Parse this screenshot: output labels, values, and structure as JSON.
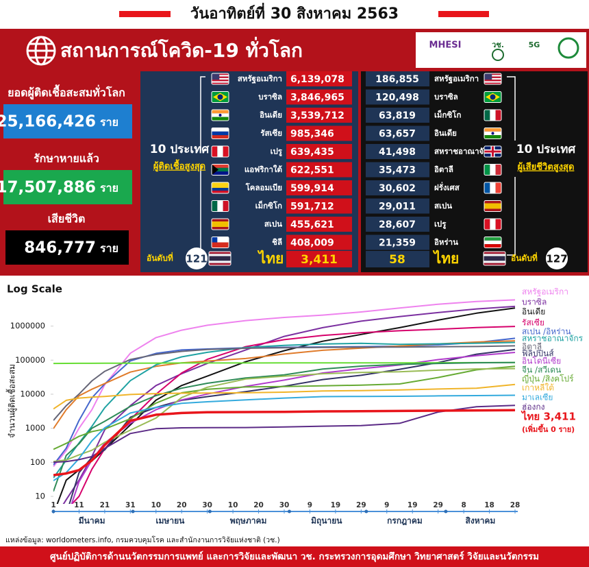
{
  "header": {
    "date": "วันอาทิตย์ที่ 30 สิงหาคม 2563"
  },
  "panel": {
    "title": "สถานการณ์โควิด-19 ทั่วโลก",
    "logos": [
      "MHESI",
      "วช.",
      "5G"
    ]
  },
  "stats": [
    {
      "label": "ยอดผู้ติดเชื้อสะสมทั่วโลก",
      "value": "25,166,426",
      "unit": "ราย"
    },
    {
      "label": "รักษาหายแล้ว",
      "value": "17,507,886",
      "unit": "ราย"
    },
    {
      "label": "เสียชีวิต",
      "value": "846,777",
      "unit": "ราย"
    }
  ],
  "cases": {
    "heading": "10 ประเทศ",
    "subheading": "ผู้ติดเชื้อสูงสุด",
    "rows": [
      {
        "country": "สหรัฐอเมริกา",
        "value": "6,139,078"
      },
      {
        "country": "บราซิล",
        "value": "3,846,965"
      },
      {
        "country": "อินเดีย",
        "value": "3,539,712"
      },
      {
        "country": "รัสเซีย",
        "value": "985,346"
      },
      {
        "country": "เปรู",
        "value": "639,435"
      },
      {
        "country": "แอฟริกาใต้",
        "value": "622,551"
      },
      {
        "country": "โคลอมเบีย",
        "value": "599,914"
      },
      {
        "country": "เม็กซิโก",
        "value": "591,712"
      },
      {
        "country": "สเปน",
        "value": "455,621"
      },
      {
        "country": "ชิลี",
        "value": "408,009"
      }
    ],
    "thailand": {
      "rank_label": "อันดับที่",
      "rank": "121",
      "country": "ไทย",
      "value": "3,411"
    }
  },
  "deaths": {
    "heading": "10 ประเทศ",
    "subheading": "ผู้เสียชีวิตสูงสุด",
    "rows": [
      {
        "country": "สหรัฐอเมริกา",
        "value": "186,855"
      },
      {
        "country": "บราซิล",
        "value": "120,498"
      },
      {
        "country": "เม็กซิโก",
        "value": "63,819"
      },
      {
        "country": "อินเดีย",
        "value": "63,657"
      },
      {
        "country": "สหราชอาณาจักร",
        "value": "41,498"
      },
      {
        "country": "อิตาลี",
        "value": "35,473"
      },
      {
        "country": "ฝรั่งเศส",
        "value": "30,602"
      },
      {
        "country": "สเปน",
        "value": "29,011"
      },
      {
        "country": "เปรู",
        "value": "28,607"
      },
      {
        "country": "อิหร่าน",
        "value": "21,359"
      }
    ],
    "thailand": {
      "rank_label": "อันดับที่",
      "rank": "127",
      "country": "ไทย",
      "value": "58"
    }
  },
  "chart_data": {
    "type": "line",
    "title": "Log Scale",
    "y_label": "จำนวนผู้ติดเชื้อสะสม",
    "log_scale": true,
    "grid": false,
    "x": [
      0,
      5,
      10,
      15,
      20,
      30,
      40,
      50,
      60,
      75,
      90,
      105,
      120,
      135,
      150,
      165,
      180
    ],
    "xlim": [
      0,
      180
    ],
    "xticks": [
      {
        "value": 0,
        "label": "1"
      },
      {
        "value": 10,
        "label": "11"
      },
      {
        "value": 20,
        "label": "21"
      },
      {
        "value": 30,
        "label": "31"
      },
      {
        "value": 40,
        "label": "10"
      },
      {
        "value": 50,
        "label": "20"
      },
      {
        "value": 60,
        "label": "30"
      },
      {
        "value": 70,
        "label": "10"
      },
      {
        "value": 80,
        "label": "20"
      },
      {
        "value": 90,
        "label": "30"
      },
      {
        "value": 100,
        "label": "9"
      },
      {
        "value": 110,
        "label": "19"
      },
      {
        "value": 120,
        "label": "29"
      },
      {
        "value": 130,
        "label": "9"
      },
      {
        "value": 140,
        "label": "19"
      },
      {
        "value": 150,
        "label": "29"
      },
      {
        "value": 160,
        "label": "8"
      },
      {
        "value": 170,
        "label": "18"
      },
      {
        "value": 180,
        "label": "28"
      }
    ],
    "months": [
      {
        "label": "มีนาคม",
        "start": 0,
        "end": 30
      },
      {
        "label": "เมษายน",
        "start": 31,
        "end": 60
      },
      {
        "label": "พฤษภาคม",
        "start": 61,
        "end": 91
      },
      {
        "label": "มิถุนายน",
        "start": 92,
        "end": 121
      },
      {
        "label": "กรกฎาคม",
        "start": 122,
        "end": 152
      },
      {
        "label": "สิงหาคม",
        "start": 153,
        "end": 180
      }
    ],
    "ylim": [
      6,
      6000000
    ],
    "yticks": [
      10,
      100,
      1000,
      10000,
      100000,
      1000000
    ],
    "series": [
      {
        "color": "#ee82ee",
        "values": [
          75,
          220,
          1000,
          3500,
          19000,
          160000,
          460000,
          760000,
          1060000,
          1450000,
          1800000,
          2100000,
          2600000,
          3400000,
          4400000,
          5300000,
          5900000
        ]
      },
      {
        "color": "#7b2fa0",
        "values": [
          2,
          8,
          30,
          150,
          900,
          4600,
          18000,
          40000,
          80000,
          200000,
          500000,
          900000,
          1400000,
          1900000,
          2500000,
          3200000,
          3800000
        ]
      },
      {
        "color": "#111111",
        "values": [
          3,
          30,
          60,
          110,
          240,
          1250,
          6700,
          18000,
          34000,
          90000,
          190000,
          360000,
          570000,
          900000,
          1500000,
          2400000,
          3400000
        ]
      },
      {
        "color": "#d6006b",
        "values": [
          2,
          4,
          10,
          63,
          250,
          1800,
          10000,
          42000,
          106000,
          250000,
          400000,
          530000,
          640000,
          730000,
          810000,
          910000,
          980000
        ]
      },
      {
        "color": "#4466cc",
        "values": [
          84,
          260,
          1700,
          7800,
          20000,
          95000,
          158000,
          200000,
          213000,
          230000,
          239000,
          244000,
          249000,
          258000,
          282000,
          330000,
          440000
        ]
      },
      {
        "color": "#e07b2a",
        "values": [
          980,
          3500,
          9000,
          14000,
          20600,
          44600,
          66000,
          83000,
          94000,
          112000,
          151000,
          195000,
          225000,
          260000,
          300000,
          340000,
          370000
        ]
      },
      {
        "color": "#1fa2a2",
        "values": [
          35,
          115,
          370,
          1140,
          4000,
          25000,
          73000,
          125000,
          170000,
          235000,
          272000,
          297000,
          311000,
          290000,
          302000,
          314000,
          331000
        ]
      },
      {
        "color": "#666677",
        "values": [
          1700,
          4600,
          10100,
          24700,
          47000,
          105000,
          147000,
          181000,
          205000,
          223000,
          232000,
          237000,
          240000,
          243000,
          247000,
          252000,
          264000
        ]
      },
      {
        "color": "#333366",
        "values": [
          3,
          3,
          50,
          140,
          230,
          2100,
          4100,
          6600,
          8500,
          11900,
          17200,
          27000,
          36000,
          54000,
          85000,
          150000,
          205000
        ]
      },
      {
        "color": "#b03acb",
        "values": [
          2,
          2,
          27,
          117,
          369,
          1400,
          3500,
          6800,
          10100,
          17000,
          26000,
          42000,
          56000,
          72000,
          104000,
          135000,
          169000
        ]
      },
      {
        "color": "#66dd33",
        "values": [
          80000,
          80500,
          80800,
          81000,
          81300,
          81500,
          81900,
          82700,
          82900,
          82900,
          83000,
          83200,
          83500,
          83600,
          84000,
          84800,
          85000
        ]
      },
      {
        "color": "#2e8b57",
        "values": [
          14,
          160,
          350,
          1000,
          1600,
          4400,
          9100,
          15000,
          21000,
          30000,
          37000,
          55000,
          67000,
          75000,
          80000,
          84000,
          85000
        ]
      },
      {
        "color": "#66aa33",
        "values": [
          240,
          360,
          580,
          800,
          950,
          1900,
          5500,
          11000,
          14000,
          16300,
          16800,
          17600,
          18500,
          20000,
          31000,
          52000,
          66000
        ]
      },
      {
        "color": "#99bb55",
        "values": [
          106,
          117,
          166,
          226,
          385,
          880,
          2000,
          8000,
          16000,
          28000,
          34000,
          40000,
          43500,
          45600,
          50800,
          55300,
          56700
        ]
      },
      {
        "color": "#f0b429",
        "values": [
          3700,
          6600,
          7700,
          8200,
          8600,
          9800,
          10400,
          10700,
          10800,
          11000,
          11500,
          12400,
          12800,
          13400,
          14200,
          15000,
          19400
        ]
      },
      {
        "color": "#33aadd",
        "values": [
          29,
          50,
          129,
          428,
          1030,
          2800,
          4100,
          5400,
          6000,
          6800,
          7700,
          8500,
          8600,
          8700,
          8950,
          9100,
          9300
        ]
      },
      {
        "color": "#5b2a86",
        "values": [
          100,
          105,
          120,
          148,
          256,
          700,
          970,
          1030,
          1040,
          1050,
          1090,
          1150,
          1200,
          1400,
          3000,
          4300,
          4700
        ]
      },
      {
        "color": "#e8151b",
        "values": [
          42,
          47,
          59,
          114,
          322,
          1650,
          2500,
          2800,
          2950,
          3000,
          3040,
          3130,
          3170,
          3220,
          3290,
          3340,
          3411
        ]
      }
    ],
    "labels": [
      {
        "text": "สหรัฐอเมริกา",
        "color": "#ee82ee"
      },
      {
        "text": "บราซิล",
        "color": "#7b2fa0"
      },
      {
        "text": "อินเดีย",
        "color": "#111111"
      },
      {
        "text": "รัสเซีย",
        "color": "#d6006b"
      },
      {
        "text": "สเปน /อิหร่าน",
        "color": "#4466cc"
      },
      {
        "text": "สหราชอาณาจักร",
        "color": "#1fa2a2"
      },
      {
        "text": "อิตาลี",
        "color": "#666677"
      },
      {
        "text": "ฟิลิปปินส์",
        "color": "#333366"
      },
      {
        "text": "อินโดนีเซีย",
        "color": "#b03acb"
      },
      {
        "text": "จีน /สวีเดน",
        "color": "#2e8b57"
      },
      {
        "text": "ญี่ปุ่น /สิงคโปร์",
        "color": "#66aa33"
      },
      {
        "text": "เกาหลีใต้",
        "color": "#f0b429"
      },
      {
        "text": "มาเลเซีย",
        "color": "#33aadd"
      },
      {
        "text": "ฮ่องกง",
        "color": "#5b2a86"
      },
      {
        "text": "ไทย 3,411",
        "color": "#e8151b"
      },
      {
        "text": "(เพิ่มขึ้น 0 ราย)",
        "color": "#e8151b"
      }
    ]
  },
  "source": "แหล่งข้อมูล: worldometers.info, กรมควบคุมโรค และสำนักงานการวิจัยแห่งชาติ (วช.)",
  "footer": "ศูนย์ปฏิบัติการด้านนวัตกรรมการแพทย์ และการวิจัยและพัฒนา  วช.   กระทรวงการอุดมศึกษา วิทยาศาสตร์ วิจัยและนวัตกรรม"
}
